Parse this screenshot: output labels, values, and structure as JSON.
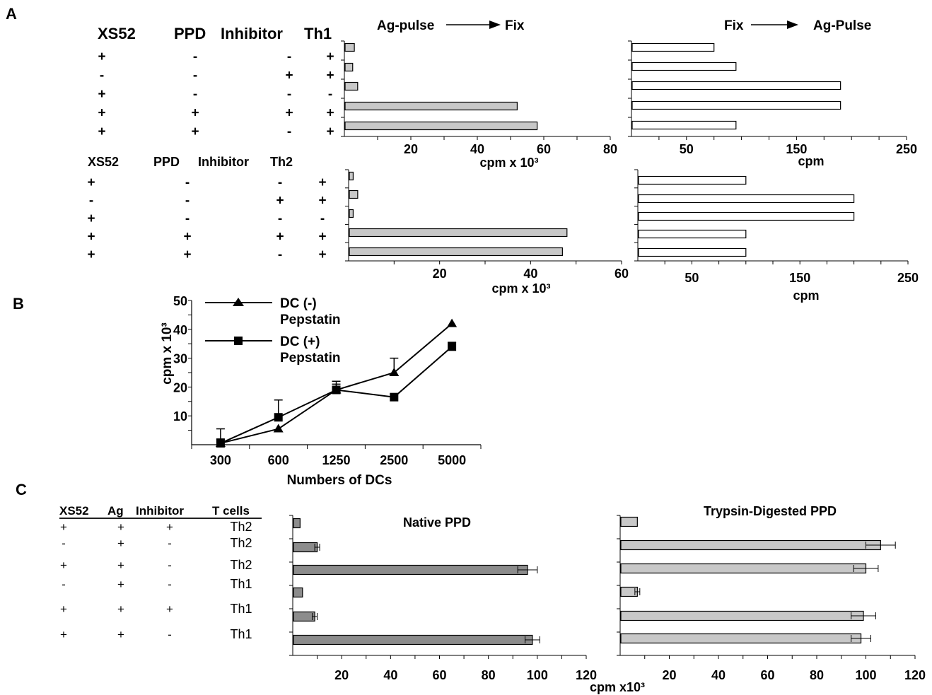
{
  "panel_labels": [
    "A",
    "B",
    "C"
  ],
  "panel_a": {
    "th1_headers": [
      "XS52",
      "PPD",
      "Inhibitor",
      "Th1"
    ],
    "th1_rows": [
      [
        "+",
        "-",
        "-",
        "+"
      ],
      [
        "-",
        "-",
        "+",
        "+"
      ],
      [
        "+",
        "-",
        "-",
        "-"
      ],
      [
        "+",
        "+",
        "+",
        "+"
      ],
      [
        "+",
        "+",
        "-",
        "+"
      ]
    ],
    "th2_headers": [
      "XS52",
      "PPD",
      "Inhibitor",
      "Th2"
    ],
    "th2_rows": [
      [
        "+",
        "-",
        "-",
        "+"
      ],
      [
        "-",
        "-",
        "+",
        "+"
      ],
      [
        "+",
        "-",
        "-",
        "-"
      ],
      [
        "+",
        "+",
        "+",
        "+"
      ],
      [
        "+",
        "+",
        "-",
        "+"
      ]
    ],
    "col_headers": {
      "left_a": "Ag-pulse",
      "left_b": "Fix",
      "right_a": "Fix",
      "right_b": "Ag-Pulse"
    }
  },
  "panel_c": {
    "table_headers": [
      "XS52",
      "Ag",
      "Inhibitor",
      "T cells"
    ],
    "table_rows": [
      [
        "+",
        "+",
        "+",
        "Th2"
      ],
      [
        "-",
        "+",
        "-",
        "Th2"
      ],
      [
        "+",
        "+",
        "-",
        "Th2"
      ],
      [
        "-",
        "+",
        "-",
        "Th1"
      ],
      [
        "+",
        "+",
        "+",
        "Th1"
      ],
      [
        "+",
        "+",
        "-",
        "Th1"
      ]
    ]
  },
  "colors": {
    "gray_bar": "#c8c8c8",
    "dark_gray_bar": "#8c8c8c",
    "light_gray_bar": "#c8c8c8",
    "white_bar": "#ffffff",
    "line": "#000000"
  },
  "chart_data": [
    {
      "id": "a1",
      "type": "bar",
      "title": "",
      "xlabel": "cpm x 10³",
      "ylabel": "",
      "xlim": [
        0,
        80
      ],
      "ticks": [
        20,
        40,
        60,
        80
      ],
      "values": [
        3,
        2.5,
        4,
        52,
        58
      ],
      "fill": "gray"
    },
    {
      "id": "a2",
      "type": "bar",
      "title": "",
      "xlabel": "cpm",
      "ylabel": "",
      "xlim": [
        0,
        250
      ],
      "ticks": [
        50,
        150,
        250
      ],
      "tick_labels": [
        "50",
        "150",
        "250"
      ],
      "values": [
        75,
        95,
        190,
        190,
        95
      ],
      "fill": "white"
    },
    {
      "id": "a3",
      "type": "bar",
      "title": "",
      "xlabel": "cpm x 10³",
      "ylabel": "",
      "xlim": [
        0,
        60
      ],
      "ticks": [
        20,
        40,
        60
      ],
      "values": [
        1,
        2,
        1,
        48,
        47
      ],
      "fill": "gray"
    },
    {
      "id": "a4",
      "type": "bar",
      "title": "",
      "xlabel": "cpm",
      "ylabel": "",
      "xlim": [
        0,
        250
      ],
      "ticks": [
        50,
        150,
        250
      ],
      "tick_labels": [
        "50",
        "150",
        "250"
      ],
      "values": [
        100,
        200,
        200,
        100,
        100
      ],
      "fill": "white"
    },
    {
      "id": "b",
      "type": "line",
      "title": "",
      "xlabel": "Numbers of DCs",
      "ylabel": "cpm x 10³",
      "categories": [
        "300",
        "600",
        "1250",
        "2500",
        "5000"
      ],
      "ylim": [
        0,
        50
      ],
      "yticks": [
        10,
        20,
        30,
        40,
        50
      ],
      "legend_position": "top-left",
      "series": [
        {
          "name": "DC (-) Pepstatin",
          "marker": "triangle",
          "values": [
            0.5,
            5.5,
            19,
            25,
            42
          ],
          "errors": [
            5,
            0,
            2,
            5,
            0
          ]
        },
        {
          "name": "DC (+) Pepstatin",
          "marker": "square",
          "values": [
            0.5,
            9.5,
            19,
            16.5,
            34
          ],
          "errors": [
            1.5,
            6,
            3,
            0,
            1.5
          ]
        }
      ]
    },
    {
      "id": "c1",
      "type": "bar",
      "title": "Native PPD",
      "xlabel": "cpm x10³",
      "ylabel": "",
      "xlim": [
        0,
        120
      ],
      "ticks": [
        20,
        40,
        60,
        80,
        100,
        120
      ],
      "values": [
        3,
        10,
        96,
        4,
        9,
        98
      ],
      "errors": [
        0,
        1,
        4,
        0,
        1,
        3
      ],
      "fill": "dark"
    },
    {
      "id": "c2",
      "type": "bar",
      "title": "Trypsin-Digested PPD",
      "xlabel": "",
      "ylabel": "",
      "xlim": [
        0,
        120
      ],
      "ticks": [
        20,
        40,
        60,
        80,
        100,
        120
      ],
      "values": [
        7,
        106,
        100,
        7,
        99,
        98
      ],
      "errors": [
        0,
        6,
        5,
        1,
        5,
        4
      ],
      "fill": "light"
    }
  ]
}
